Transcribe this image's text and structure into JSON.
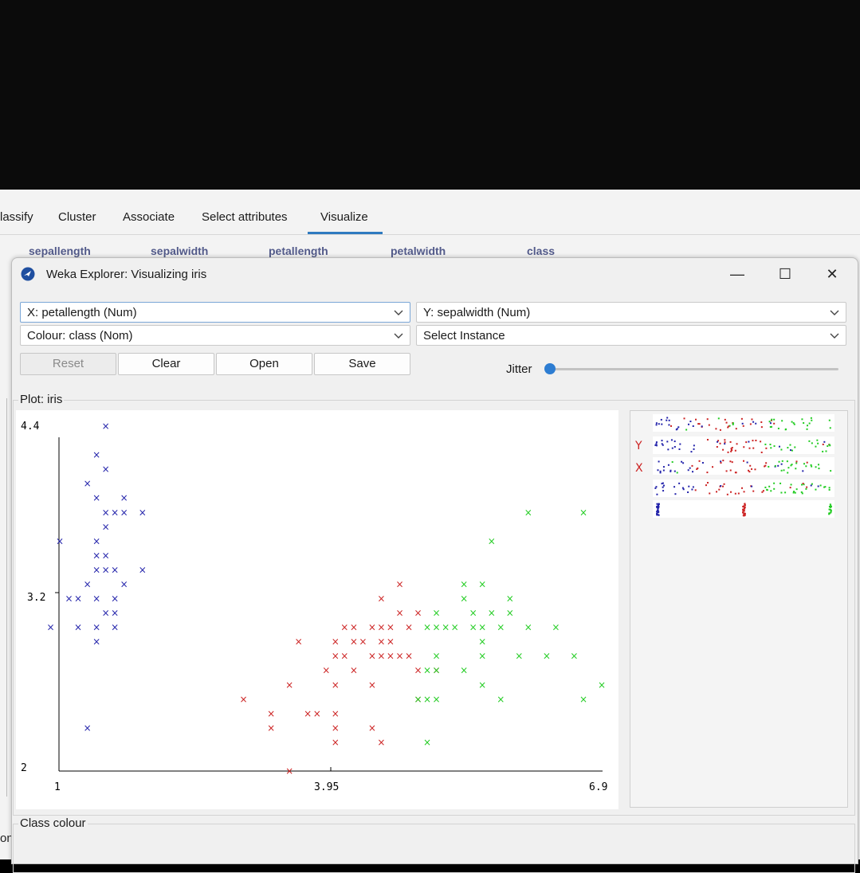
{
  "tabs": [
    {
      "label": "lassify",
      "active": false
    },
    {
      "label": "Cluster",
      "active": false
    },
    {
      "label": "Associate",
      "active": false
    },
    {
      "label": "Select attributes",
      "active": false
    },
    {
      "label": "Visualize",
      "active": true
    }
  ],
  "attributes": [
    "sepallength",
    "sepalwidth",
    "petallength",
    "petalwidth",
    "class"
  ],
  "window": {
    "title": "Weka Explorer: Visualizing iris",
    "minimize": "—",
    "maximize": "☐",
    "close": "✕"
  },
  "controls": {
    "x_axis": "X: petallength (Num)",
    "y_axis": "Y: sepalwidth (Num)",
    "colour": "Colour: class (Nom)",
    "select_instance": "Select Instance",
    "reset": "Reset",
    "clear": "Clear",
    "open": "Open",
    "save": "Save",
    "jitter_label": "Jitter",
    "jitter_value": 0
  },
  "plot_group_label": "Plot: iris",
  "class_colour_label": "Class colour",
  "left_fragment": "on",
  "matrix": {
    "y_label": "Y",
    "x_label": "X"
  },
  "colors": {
    "setosa": "#2222aa",
    "versicolor": "#cc2222",
    "virginica": "#22cc22",
    "accent": "#2f7ac0"
  },
  "chart_data": {
    "type": "scatter",
    "marker": "x",
    "x_ticks": [
      "1",
      "3.95",
      "6.9"
    ],
    "y_ticks": [
      "4.4",
      "3.2",
      "2"
    ],
    "xlim": [
      1,
      6.9
    ],
    "ylim": [
      2,
      4.4
    ],
    "series": [
      {
        "color": "#2222aa",
        "points": [
          [
            1.5,
            4.4
          ],
          [
            1.4,
            4.2
          ],
          [
            1.5,
            4.1
          ],
          [
            1.3,
            4.0
          ],
          [
            1.4,
            3.9
          ],
          [
            1.7,
            3.9
          ],
          [
            1.5,
            3.8
          ],
          [
            1.6,
            3.8
          ],
          [
            1.7,
            3.8
          ],
          [
            1.9,
            3.8
          ],
          [
            1.5,
            3.7
          ],
          [
            1.0,
            3.6
          ],
          [
            1.4,
            3.6
          ],
          [
            1.4,
            3.5
          ],
          [
            1.5,
            3.5
          ],
          [
            1.4,
            3.4
          ],
          [
            1.5,
            3.4
          ],
          [
            1.6,
            3.4
          ],
          [
            1.9,
            3.4
          ],
          [
            1.3,
            3.3
          ],
          [
            1.7,
            3.3
          ],
          [
            1.1,
            3.2
          ],
          [
            1.2,
            3.2
          ],
          [
            1.4,
            3.2
          ],
          [
            1.6,
            3.2
          ],
          [
            1.5,
            3.1
          ],
          [
            1.6,
            3.1
          ],
          [
            0.9,
            3.0
          ],
          [
            1.2,
            3.0
          ],
          [
            1.4,
            3.0
          ],
          [
            1.6,
            3.0
          ],
          [
            1.4,
            2.9
          ],
          [
            1.3,
            2.3
          ]
        ]
      },
      {
        "color": "#cc2222",
        "points": [
          [
            4.7,
            3.3
          ],
          [
            4.5,
            3.2
          ],
          [
            4.9,
            3.1
          ],
          [
            4.7,
            3.1
          ],
          [
            4.4,
            3.0
          ],
          [
            4.5,
            3.0
          ],
          [
            4.6,
            3.0
          ],
          [
            4.2,
            3.0
          ],
          [
            4.1,
            3.0
          ],
          [
            4.8,
            3.0
          ],
          [
            4.0,
            2.9
          ],
          [
            4.2,
            2.9
          ],
          [
            4.5,
            2.9
          ],
          [
            4.6,
            2.9
          ],
          [
            3.6,
            2.9
          ],
          [
            4.3,
            2.9
          ],
          [
            4.7,
            2.8
          ],
          [
            4.4,
            2.8
          ],
          [
            4.5,
            2.8
          ],
          [
            4.6,
            2.8
          ],
          [
            4.8,
            2.8
          ],
          [
            4.0,
            2.8
          ],
          [
            4.1,
            2.8
          ],
          [
            3.9,
            2.7
          ],
          [
            4.2,
            2.7
          ],
          [
            4.9,
            2.7
          ],
          [
            5.1,
            2.7
          ],
          [
            3.5,
            2.6
          ],
          [
            4.0,
            2.6
          ],
          [
            4.4,
            2.6
          ],
          [
            3.0,
            2.5
          ],
          [
            4.9,
            2.5
          ],
          [
            3.3,
            2.4
          ],
          [
            3.7,
            2.4
          ],
          [
            3.8,
            2.4
          ],
          [
            4.0,
            2.4
          ],
          [
            3.3,
            2.3
          ],
          [
            4.0,
            2.3
          ],
          [
            4.4,
            2.3
          ],
          [
            4.0,
            2.2
          ],
          [
            4.5,
            2.2
          ],
          [
            3.5,
            2.0
          ]
        ]
      },
      {
        "color": "#22cc22",
        "points": [
          [
            6.1,
            3.8
          ],
          [
            6.7,
            3.8
          ],
          [
            5.7,
            3.6
          ],
          [
            5.6,
            3.3
          ],
          [
            5.4,
            3.3
          ],
          [
            5.9,
            3.2
          ],
          [
            5.4,
            3.2
          ],
          [
            5.1,
            3.1
          ],
          [
            5.5,
            3.1
          ],
          [
            5.9,
            3.1
          ],
          [
            5.7,
            3.1
          ],
          [
            5.0,
            3.0
          ],
          [
            5.2,
            3.0
          ],
          [
            5.6,
            3.0
          ],
          [
            5.8,
            3.0
          ],
          [
            6.1,
            3.0
          ],
          [
            5.3,
            3.0
          ],
          [
            5.1,
            3.0
          ],
          [
            5.5,
            3.0
          ],
          [
            6.4,
            3.0
          ],
          [
            5.6,
            2.9
          ],
          [
            5.1,
            2.8
          ],
          [
            5.6,
            2.8
          ],
          [
            6.0,
            2.8
          ],
          [
            6.6,
            2.8
          ],
          [
            6.3,
            2.8
          ],
          [
            5.1,
            2.7
          ],
          [
            5.0,
            2.7
          ],
          [
            5.4,
            2.7
          ],
          [
            5.6,
            2.6
          ],
          [
            6.9,
            2.6
          ],
          [
            5.0,
            2.5
          ],
          [
            5.8,
            2.5
          ],
          [
            4.9,
            2.5
          ],
          [
            5.1,
            2.5
          ],
          [
            6.7,
            2.5
          ],
          [
            5.0,
            2.2
          ]
        ]
      }
    ]
  }
}
